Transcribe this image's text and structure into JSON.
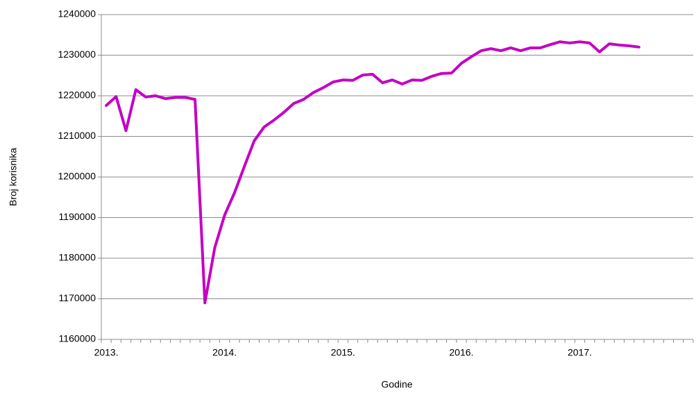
{
  "chart_data": {
    "type": "line",
    "ylabel": "Broj korisnika",
    "xlabel": "Godine",
    "categories": [
      "2013.",
      null,
      null,
      null,
      null,
      null,
      null,
      null,
      null,
      null,
      null,
      null,
      "2014.",
      null,
      null,
      null,
      null,
      null,
      null,
      null,
      null,
      null,
      null,
      null,
      "2015.",
      null,
      null,
      null,
      null,
      null,
      null,
      null,
      null,
      null,
      null,
      null,
      "2016.",
      null,
      null,
      null,
      null,
      null,
      null,
      null,
      null,
      null,
      null,
      null,
      "2017.",
      null,
      null,
      null,
      null,
      null,
      null,
      null,
      null,
      null,
      null,
      null
    ],
    "series": [
      {
        "color": "#c400c4",
        "values": [
          1217600,
          1219800,
          1211400,
          1221500,
          1219700,
          1220000,
          1219300,
          1219600,
          1219600,
          1219100,
          1169000,
          1182600,
          1190600,
          1196100,
          1202600,
          1208900,
          1212300,
          1214000,
          1215900,
          1218100,
          1219100,
          1220800,
          1222000,
          1223400,
          1223900,
          1223800,
          1225100,
          1225300,
          1223200,
          1223900,
          1222900,
          1223900,
          1223800,
          1224800,
          1225500,
          1225600,
          1228000,
          1229600,
          1231100,
          1231600,
          1231100,
          1231800,
          1231100,
          1231800,
          1231800,
          1232600,
          1233300,
          1233000,
          1233300,
          1233000,
          1230800,
          1232800,
          1232500,
          1232300,
          1232000,
          null,
          null,
          null,
          null,
          null
        ]
      }
    ],
    "ylim": [
      1160000,
      1240000
    ],
    "yticks": [
      1160000,
      1170000,
      1180000,
      1190000,
      1200000,
      1210000,
      1220000,
      1230000,
      1240000
    ],
    "grid": true
  }
}
